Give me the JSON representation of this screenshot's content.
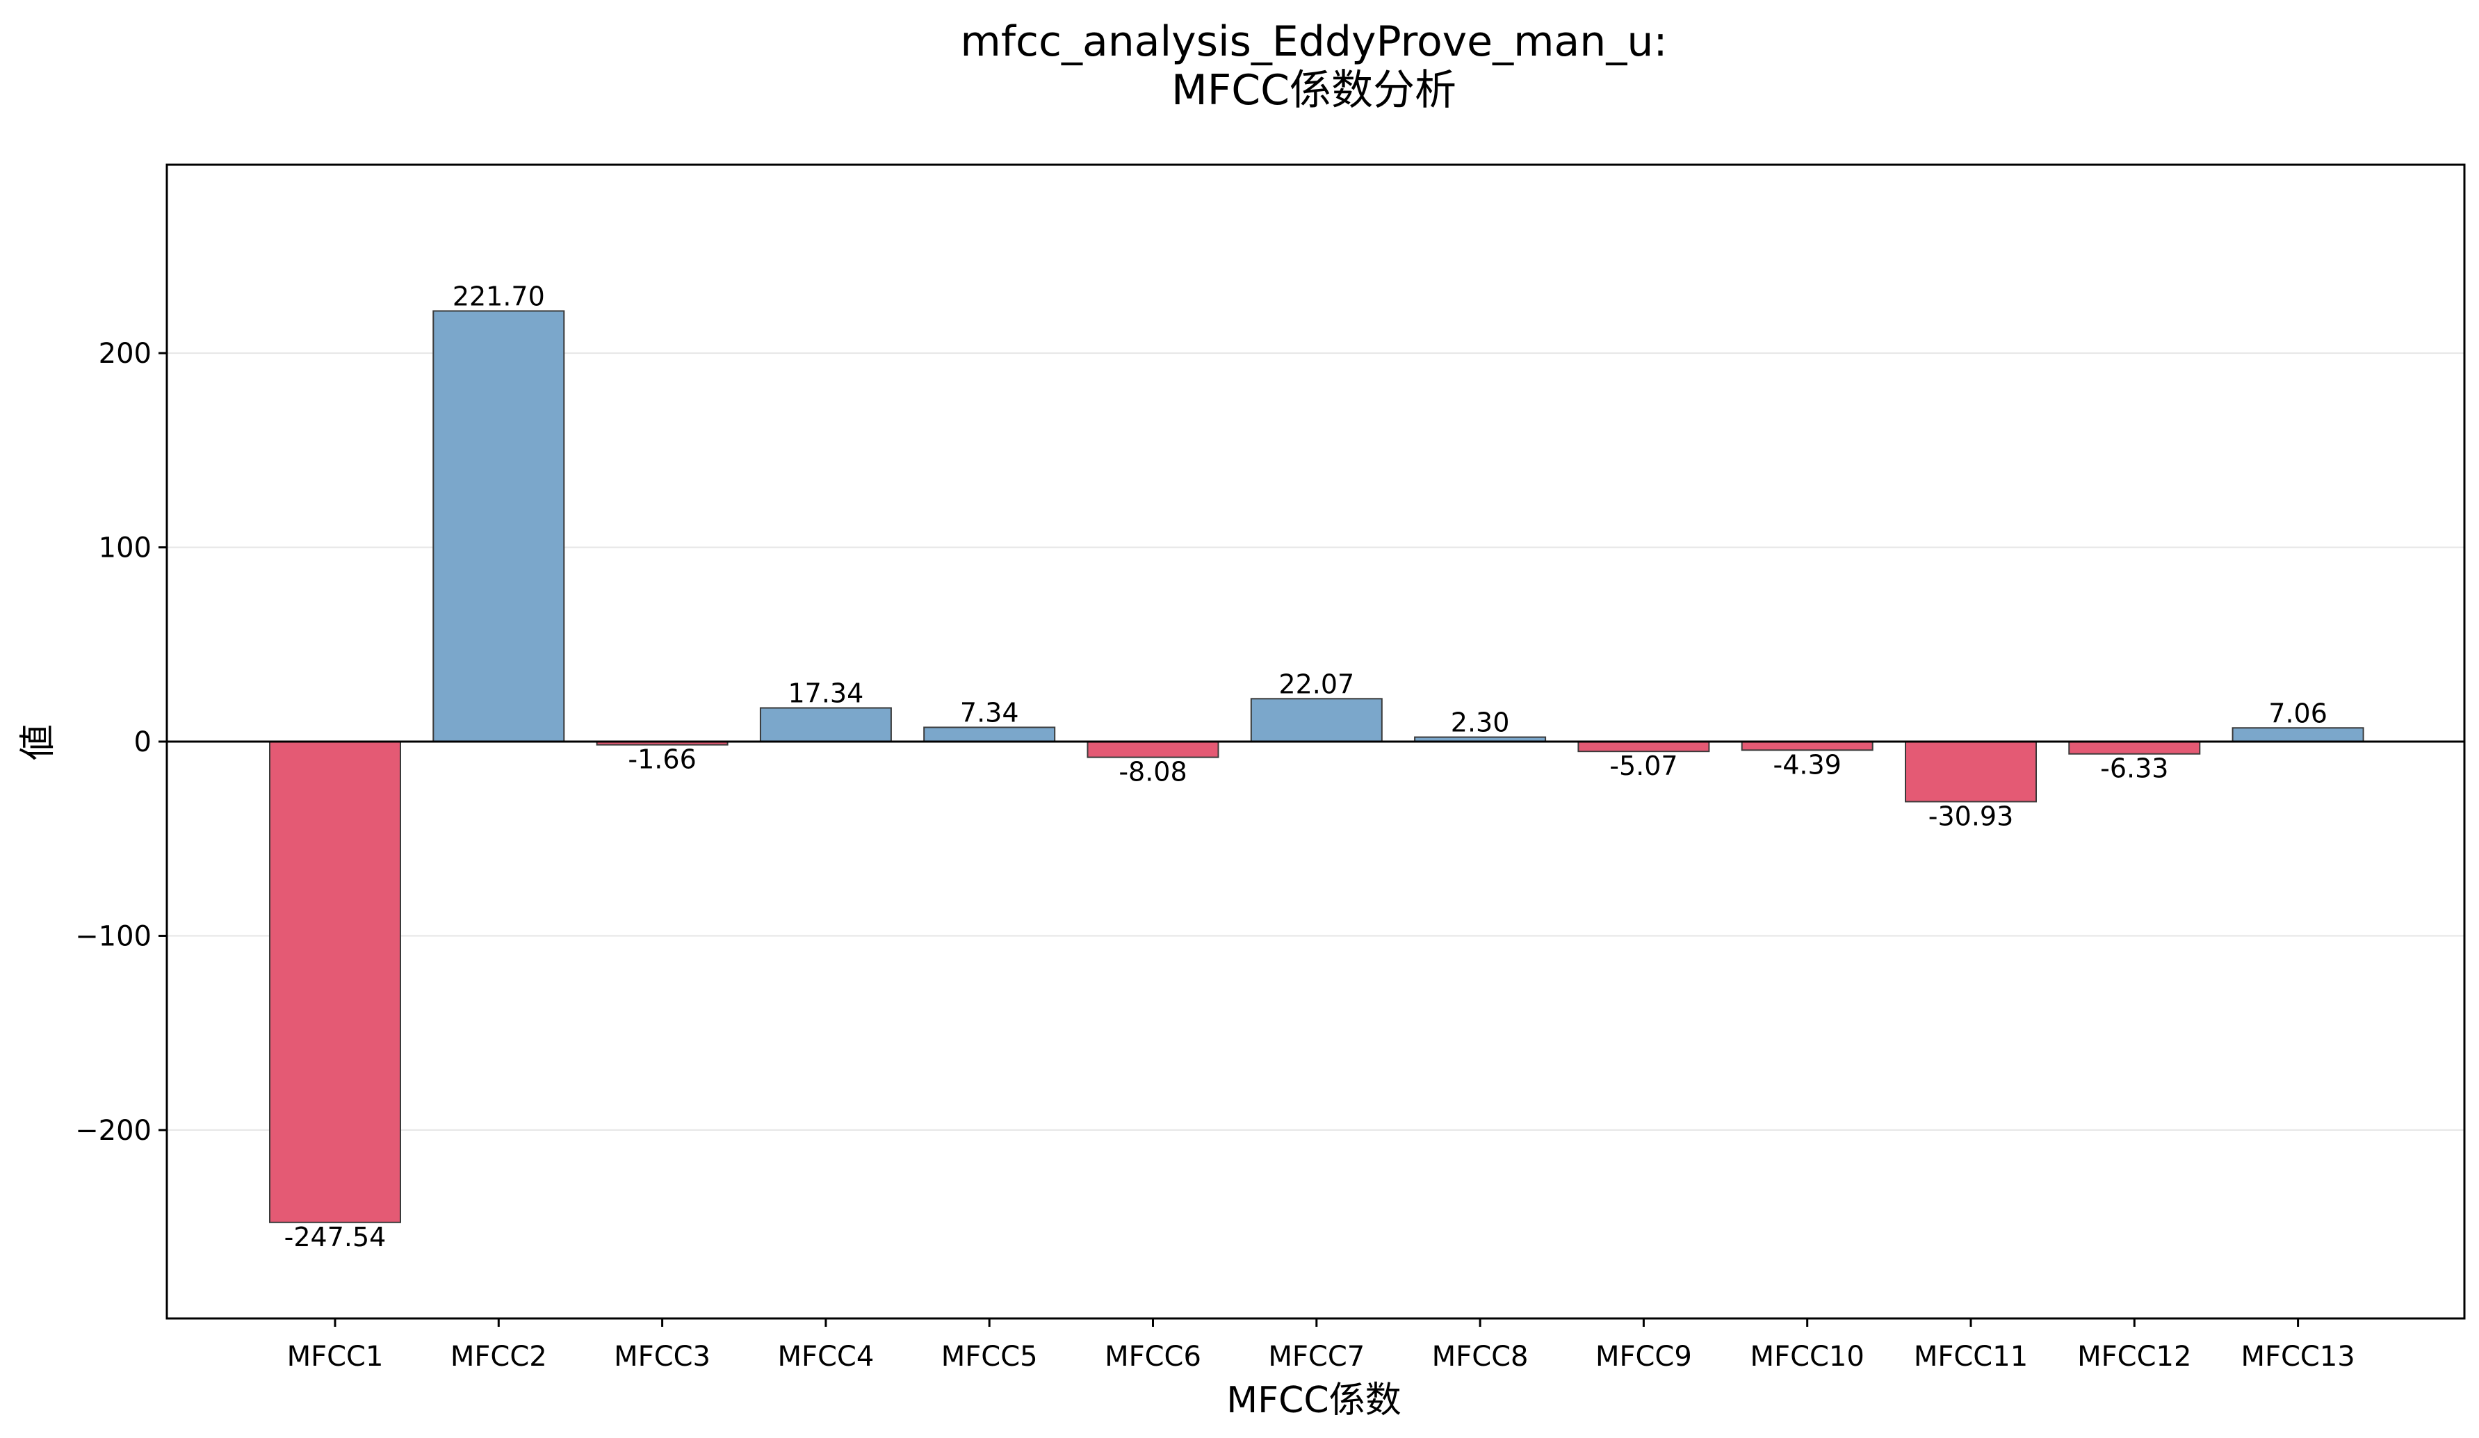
{
  "chart_data": {
    "type": "bar",
    "title_line1": "mfcc_analysis_EddyProve_man_u:",
    "title_line2": "MFCC係数分析",
    "xlabel": "MFCC係数",
    "ylabel": "値",
    "categories": [
      "MFCC1",
      "MFCC2",
      "MFCC3",
      "MFCC4",
      "MFCC5",
      "MFCC6",
      "MFCC7",
      "MFCC8",
      "MFCC9",
      "MFCC10",
      "MFCC11",
      "MFCC12",
      "MFCC13"
    ],
    "values": [
      -247.54,
      221.7,
      -1.66,
      17.34,
      7.34,
      -8.08,
      22.07,
      2.3,
      -5.07,
      -4.39,
      -30.93,
      -6.33,
      7.06
    ],
    "value_labels": [
      "-247.54",
      "221.70",
      "-1.66",
      "17.34",
      "7.34",
      "-8.08",
      "22.07",
      "2.30",
      "-5.07",
      "-4.39",
      "-30.93",
      "-6.33",
      "7.06"
    ],
    "ylim": [
      -297,
      297
    ],
    "yticks": [
      -200,
      -100,
      0,
      100,
      200
    ],
    "ytick_labels": [
      "−200",
      "−100",
      "0",
      "100",
      "200"
    ],
    "grid": "horizontal",
    "colors": {
      "positive": "#7ba7cb",
      "negative": "#e45a74",
      "edge": "#3a3a3a",
      "grid": "#e6e6e6"
    }
  }
}
